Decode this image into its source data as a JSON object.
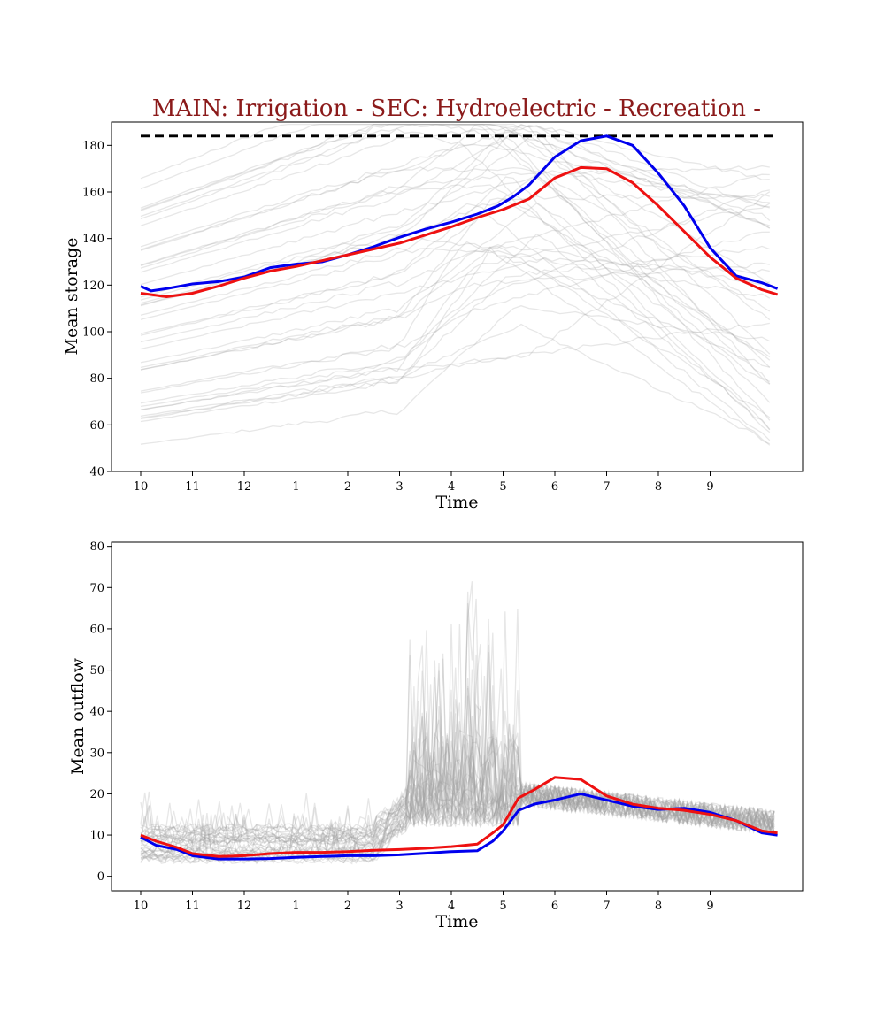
{
  "figure": {
    "title": "MAIN: Irrigation - SEC: Hydroelectric - Recreation -",
    "title_color": "#8b1a1a"
  },
  "colors": {
    "ensemble": "#9e9e9e",
    "blue_series": "#0000ee",
    "red_series": "#ee1111",
    "capacity": "#000000"
  },
  "chart_data": [
    {
      "type": "line",
      "xlabel": "Time",
      "ylabel": "Mean storage",
      "x_tick_labels": [
        "10",
        "11",
        "12",
        "1",
        "2",
        "3",
        "4",
        "5",
        "6",
        "7",
        "8",
        "9"
      ],
      "x_range": [
        0,
        12.8
      ],
      "ylim": [
        40,
        190
      ],
      "y_ticks": [
        40,
        60,
        80,
        100,
        120,
        140,
        160,
        180
      ],
      "grid": false,
      "reference_line": {
        "style": "dashed",
        "value": 184
      },
      "series": [
        {
          "color": "blue",
          "x": [
            0,
            0.2,
            0.5,
            1,
            1.5,
            2,
            2.5,
            3,
            3.5,
            4,
            4.5,
            5,
            5.5,
            6,
            6.5,
            6.9,
            7.2,
            7.5,
            8,
            8.5,
            9,
            9.5,
            10,
            10.5,
            11,
            11.5,
            12,
            12.3
          ],
          "y": [
            119.5,
            117.5,
            118.5,
            120.5,
            121.5,
            123.5,
            127.5,
            129,
            130,
            133,
            136.5,
            140.5,
            144,
            147,
            150.5,
            154,
            158,
            163,
            175,
            182,
            184,
            180,
            168,
            154,
            136,
            124,
            121,
            118.5
          ]
        },
        {
          "color": "red",
          "x": [
            0,
            0.5,
            1,
            1.5,
            2,
            2.5,
            3,
            3.5,
            4,
            4.5,
            5,
            5.5,
            6,
            6.5,
            7,
            7.5,
            8,
            8.5,
            9,
            9.5,
            10,
            10.5,
            11,
            11.5,
            12,
            12.3
          ],
          "y": [
            116.5,
            115,
            116.5,
            119.5,
            123,
            126,
            128,
            130.5,
            133,
            135.5,
            138,
            141.5,
            145,
            149,
            152.5,
            157,
            166,
            170.5,
            170,
            164,
            154,
            143,
            132,
            123,
            118,
            116
          ]
        }
      ]
    },
    {
      "type": "line",
      "xlabel": "Time",
      "ylabel": "Mean outflow",
      "x_tick_labels": [
        "10",
        "11",
        "12",
        "1",
        "2",
        "3",
        "4",
        "5",
        "6",
        "7",
        "8",
        "9"
      ],
      "x_range": [
        0,
        12.8
      ],
      "ylim": [
        -3.5,
        81
      ],
      "y_ticks": [
        0,
        10,
        20,
        30,
        40,
        50,
        60,
        70,
        80
      ],
      "grid": false,
      "series": [
        {
          "color": "blue",
          "x": [
            0,
            0.3,
            0.7,
            1,
            1.5,
            2,
            2.5,
            3,
            3.5,
            4,
            4.5,
            5,
            5.5,
            6,
            6.5,
            6.8,
            7,
            7.3,
            7.6,
            8,
            8.5,
            9,
            9.5,
            10,
            10.5,
            11,
            11.5,
            12,
            12.3
          ],
          "y": [
            9.5,
            7.5,
            6.5,
            5,
            4.2,
            4.2,
            4.3,
            4.6,
            4.8,
            5,
            5,
            5.2,
            5.6,
            6,
            6.2,
            8.5,
            11,
            16,
            17.5,
            18.5,
            20,
            18.5,
            17,
            16.2,
            16.5,
            15.5,
            13.5,
            10.5,
            10
          ]
        },
        {
          "color": "red",
          "x": [
            0,
            0.3,
            0.7,
            1,
            1.5,
            2,
            2.5,
            3,
            3.5,
            4,
            4.5,
            5,
            5.5,
            6,
            6.5,
            6.8,
            7,
            7.3,
            7.6,
            8,
            8.5,
            9,
            9.5,
            10,
            10.5,
            11,
            11.5,
            12,
            12.3
          ],
          "y": [
            10,
            8.5,
            7,
            5.5,
            4.8,
            5,
            5.5,
            5.8,
            5.8,
            6,
            6.3,
            6.5,
            6.8,
            7.2,
            7.8,
            10.5,
            12.5,
            19,
            21,
            24,
            23.5,
            19.5,
            17.5,
            16.5,
            16,
            15,
            13.5,
            11,
            10.5
          ]
        }
      ]
    }
  ]
}
